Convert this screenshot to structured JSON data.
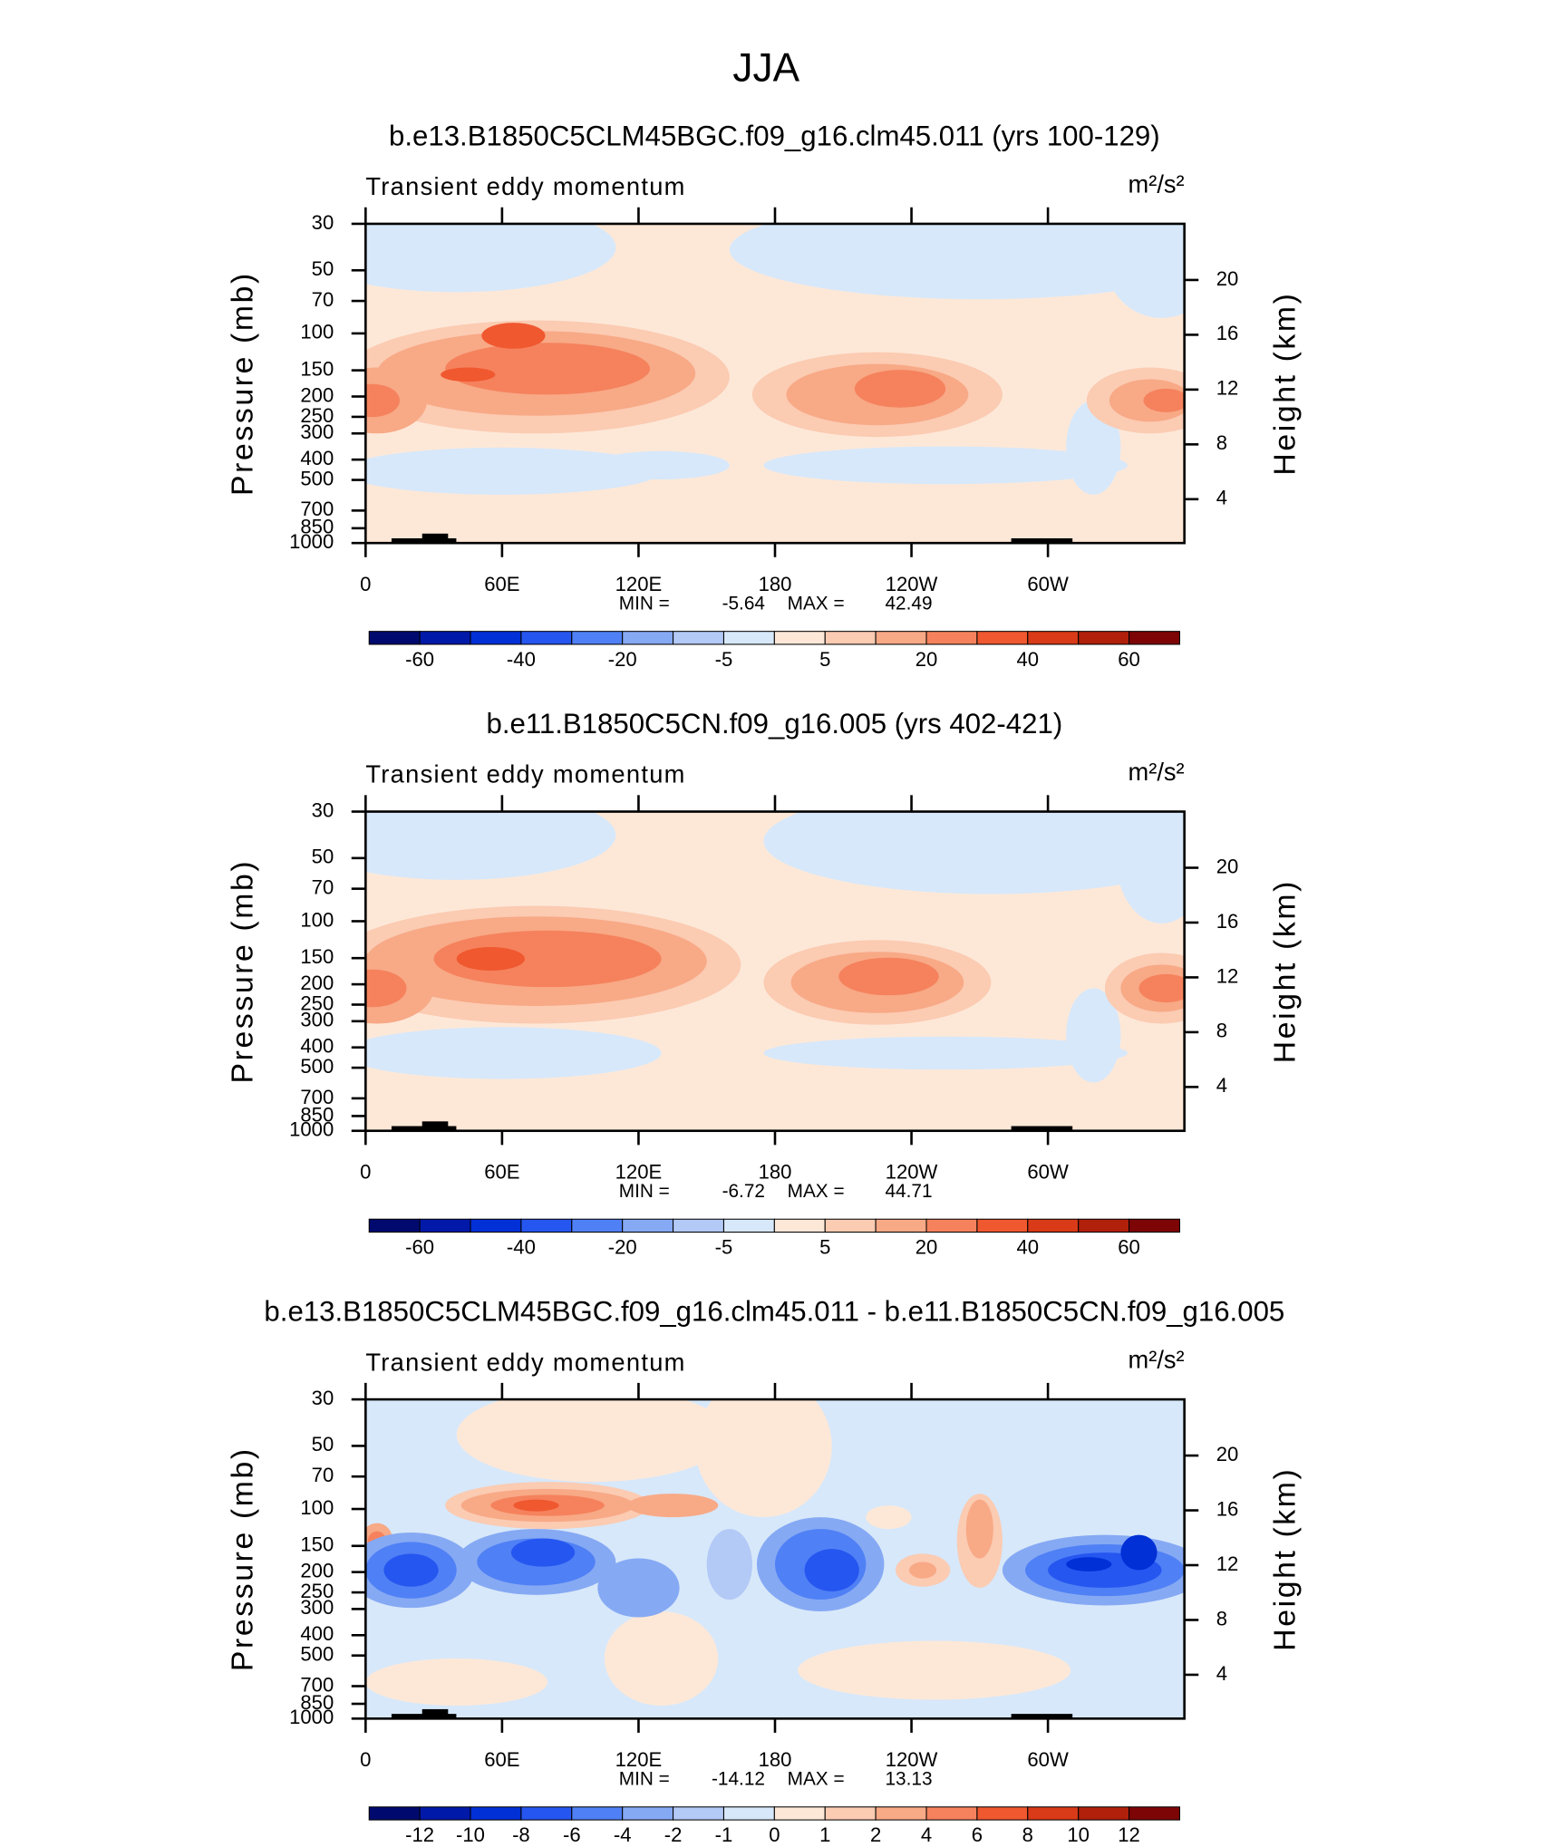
{
  "title": "JJA",
  "chart_data": [
    {
      "type": "contour",
      "title": "b.e13.B1850C5CLM45BGC.f09_g16.clm45.011 (yrs 100-129)",
      "subtitle": "Transient eddy momentum",
      "units": "m²/s²",
      "ylabel": "Pressure (mb)",
      "y2label": "Height (km)",
      "xlim": [
        0,
        360
      ],
      "xticks": [
        0,
        {
          "value": 60,
          "label": "60E"
        },
        {
          "value": 120,
          "label": "120E"
        },
        180,
        {
          "value": 240,
          "label": "120W"
        },
        {
          "value": 300,
          "label": "60W"
        }
      ],
      "ylim": [
        1000,
        30
      ],
      "log_y": true,
      "yticks": [
        30,
        50,
        70,
        100,
        150,
        200,
        250,
        300,
        400,
        500,
        700,
        850,
        1000
      ],
      "y2lim": [
        0.8,
        24.1
      ],
      "y2ticks": [
        4,
        8,
        12,
        16,
        20
      ],
      "min_label": "MIN =",
      "min": -5.64,
      "max_label": "MAX =",
      "max": 42.49,
      "colorbar": {
        "colors": [
          "#000a6e",
          "#0019a8",
          "#0030d6",
          "#2656f0",
          "#4f80f5",
          "#86a9f4",
          "#b3c9f6",
          "#d7e8fa",
          "#fde8d8",
          "#fbcbb2",
          "#f8a986",
          "#f5825d",
          "#f0582f",
          "#d93a17",
          "#b0200b",
          "#7e0505"
        ],
        "ticks": [
          -60,
          -40,
          -20,
          -5,
          5,
          20,
          40,
          60
        ]
      }
    },
    {
      "type": "contour",
      "title": "b.e11.B1850C5CN.f09_g16.005 (yrs 402-421)",
      "subtitle": "Transient eddy momentum",
      "units": "m²/s²",
      "ylabel": "Pressure (mb)",
      "y2label": "Height (km)",
      "xlim": [
        0,
        360
      ],
      "xticks": [
        0,
        {
          "value": 60,
          "label": "60E"
        },
        {
          "value": 120,
          "label": "120E"
        },
        180,
        {
          "value": 240,
          "label": "120W"
        },
        {
          "value": 300,
          "label": "60W"
        }
      ],
      "ylim": [
        1000,
        30
      ],
      "log_y": true,
      "yticks": [
        30,
        50,
        70,
        100,
        150,
        200,
        250,
        300,
        400,
        500,
        700,
        850,
        1000
      ],
      "y2lim": [
        0.8,
        24.1
      ],
      "y2ticks": [
        4,
        8,
        12,
        16,
        20
      ],
      "min_label": "MIN =",
      "min": -6.72,
      "max_label": "MAX =",
      "max": 44.71,
      "colorbar": {
        "colors": [
          "#000a6e",
          "#0019a8",
          "#0030d6",
          "#2656f0",
          "#4f80f5",
          "#86a9f4",
          "#b3c9f6",
          "#d7e8fa",
          "#fde8d8",
          "#fbcbb2",
          "#f8a986",
          "#f5825d",
          "#f0582f",
          "#d93a17",
          "#b0200b",
          "#7e0505"
        ],
        "ticks": [
          -60,
          -40,
          -20,
          -5,
          5,
          20,
          40,
          60
        ]
      }
    },
    {
      "type": "contour",
      "title": "b.e13.B1850C5CLM45BGC.f09_g16.clm45.011 - b.e11.B1850C5CN.f09_g16.005",
      "subtitle": "Transient eddy momentum",
      "units": "m²/s²",
      "ylabel": "Pressure (mb)",
      "y2label": "Height (km)",
      "xlim": [
        0,
        360
      ],
      "xticks": [
        0,
        {
          "value": 60,
          "label": "60E"
        },
        {
          "value": 120,
          "label": "120E"
        },
        180,
        {
          "value": 240,
          "label": "120W"
        },
        {
          "value": 300,
          "label": "60W"
        }
      ],
      "ylim": [
        1000,
        30
      ],
      "log_y": true,
      "yticks": [
        30,
        50,
        70,
        100,
        150,
        200,
        250,
        300,
        400,
        500,
        700,
        850,
        1000
      ],
      "y2lim": [
        0.8,
        24.1
      ],
      "y2ticks": [
        4,
        8,
        12,
        16,
        20
      ],
      "min_label": "MIN =",
      "min": -14.12,
      "max_label": "MAX =",
      "max": 13.13,
      "colorbar": {
        "colors": [
          "#000a6e",
          "#0019a8",
          "#0030d6",
          "#2656f0",
          "#4f80f5",
          "#86a9f4",
          "#b3c9f6",
          "#d7e8fa",
          "#fde8d8",
          "#fbcbb2",
          "#f8a986",
          "#f5825d",
          "#f0582f",
          "#d93a17",
          "#b0200b",
          "#7e0505"
        ],
        "ticks": [
          -12,
          -10,
          -8,
          -6,
          -4,
          -2,
          -1,
          0,
          1,
          2,
          4,
          6,
          8,
          10,
          12
        ]
      }
    }
  ]
}
